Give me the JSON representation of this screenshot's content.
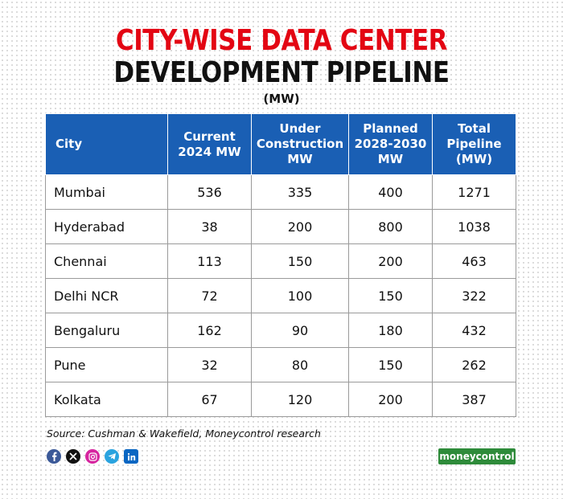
{
  "title": {
    "line1": "CITY-WISE DATA CENTER",
    "line2": "DEVELOPMENT PIPELINE",
    "unit": "(MW)"
  },
  "table": {
    "headers": [
      [
        "City"
      ],
      [
        "Current",
        "2024 MW"
      ],
      [
        "Under",
        "Construction",
        "MW"
      ],
      [
        "Planned",
        "2028-2030",
        "MW"
      ],
      [
        "Total",
        "Pipeline",
        "(MW)"
      ]
    ],
    "rows": [
      [
        "Mumbai",
        "536",
        "335",
        "400",
        "1271"
      ],
      [
        "Hyderabad",
        "38",
        "200",
        "800",
        "1038"
      ],
      [
        "Chennai",
        "113",
        "150",
        "200",
        "463"
      ],
      [
        "Delhi NCR",
        "72",
        "100",
        "150",
        "322"
      ],
      [
        "Bengaluru",
        "162",
        "90",
        "180",
        "432"
      ],
      [
        "Pune",
        "32",
        "80",
        "150",
        "262"
      ],
      [
        "Kolkata",
        "67",
        "120",
        "200",
        "387"
      ]
    ]
  },
  "source": "Source: Cushman & Wakefield, Moneycontrol research",
  "socials": [
    "facebook-icon",
    "x-icon",
    "instagram-icon",
    "telegram-icon",
    "linkedin-icon"
  ],
  "brand": "moneycontrol",
  "colors": {
    "title_red": "#e30613",
    "header_blue": "#1a5fb4",
    "brand_green": "#2e8b3a"
  }
}
